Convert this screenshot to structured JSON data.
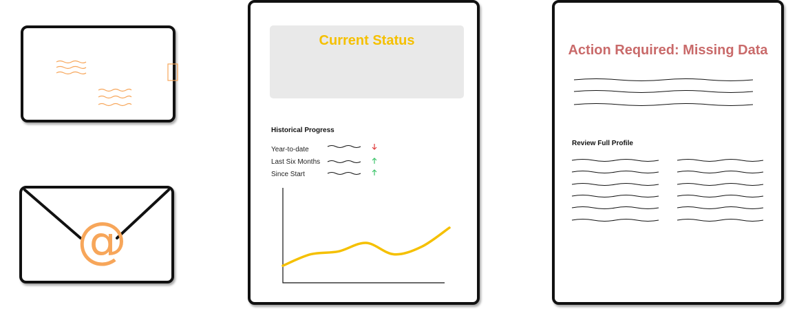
{
  "colors": {
    "accent_yellow": "#F5C000",
    "accent_orange": "#F7A65A",
    "alert_red": "#C96A6A",
    "down_red": "#E03A3A",
    "up_green": "#3CC46A",
    "status_box_bg": "#E9E9E9"
  },
  "icons": {
    "postcard": "postcard-icon",
    "email": "email-envelope-icon",
    "at_sign": "@"
  },
  "status_card": {
    "title": "Current Status",
    "history_title": "Historical Progress",
    "rows": [
      {
        "label": "Year-to-date",
        "trend": "down"
      },
      {
        "label": "Last Six Months",
        "trend": "up"
      },
      {
        "label": "Since Start",
        "trend": "up"
      }
    ]
  },
  "chart_data": {
    "type": "line",
    "title": "",
    "xlabel": "",
    "ylabel": "",
    "x": [
      0,
      1,
      2,
      3,
      4,
      5,
      6
    ],
    "series": [
      {
        "values": [
          0.18,
          0.3,
          0.33,
          0.42,
          0.3,
          0.38,
          0.58
        ]
      }
    ]
  },
  "alert_card": {
    "title": "Action Required: Missing Data",
    "review_title": "Review Full Profile"
  }
}
